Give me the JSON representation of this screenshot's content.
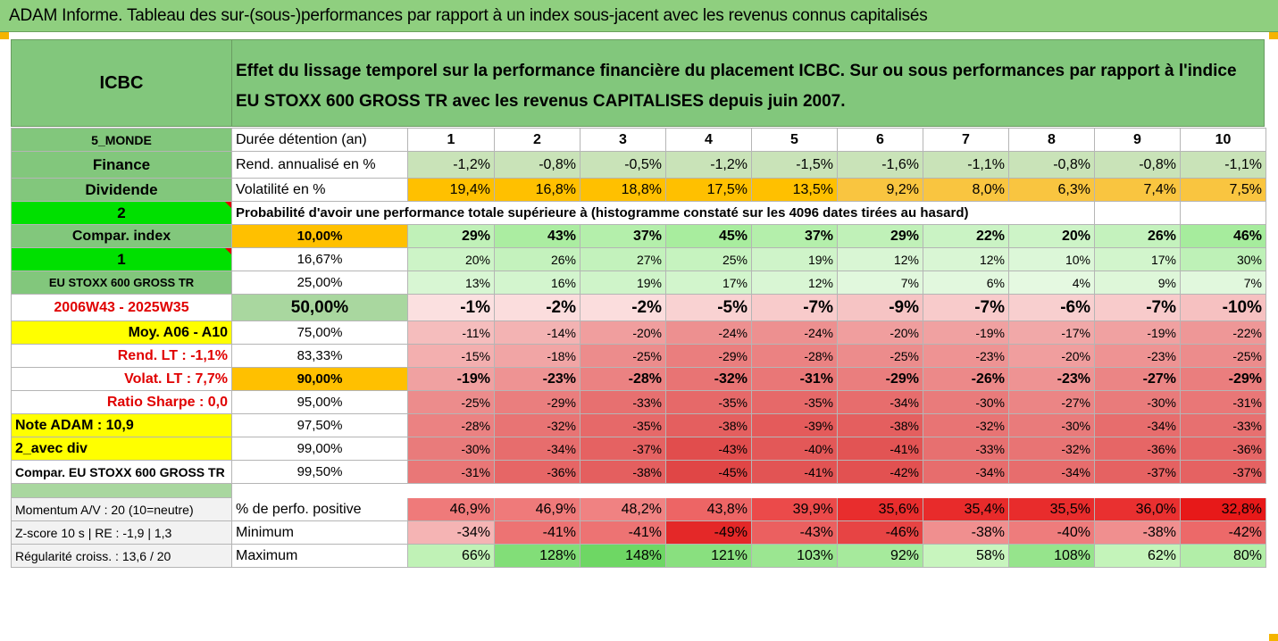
{
  "title": "ADAM Informe. Tableau des sur-(sous-)performances par rapport à un index sous-jacent avec les revenus connus capitalisés",
  "header": {
    "name": "ICBC",
    "description": "Effet du lissage temporel sur la performance financière du placement ICBC. Sur ou sous performances par rapport à l'indice EU STOXX 600 GROSS TR avec les revenus CAPITALISES depuis juin 2007."
  },
  "left_panel": {
    "zone": "5_MONDE",
    "sector": "Finance",
    "type": "Dividende",
    "sel1": "2",
    "compar_index": "Compar. index",
    "sel2": "1",
    "index_name": "EU STOXX 600 GROSS TR",
    "period": "2006W43 - 2025W35",
    "moy": "Moy. A06 - A10",
    "rend_lt": "Rend. LT :   -1,1%",
    "volat_lt": "Volat. LT :   7,7%",
    "sharpe": "Ratio Sharpe :   0,0",
    "note": "Note ADAM : 10,9",
    "div": "2_avec div",
    "compar_full": "Compar. EU STOXX 600 GROSS TR"
  },
  "durations_label": "Durée détention (an)",
  "durations": [
    "1",
    "2",
    "3",
    "4",
    "5",
    "6",
    "7",
    "8",
    "9",
    "10"
  ],
  "rend_label": "Rend. annualisé en %",
  "rend": [
    "-1,2%",
    "-0,8%",
    "-0,5%",
    "-1,2%",
    "-1,5%",
    "-1,6%",
    "-1,1%",
    "-0,8%",
    "-0,8%",
    "-1,1%"
  ],
  "vol_label": "Volatilité en %",
  "vol": [
    "19,4%",
    "16,8%",
    "18,8%",
    "17,5%",
    "13,5%",
    "9,2%",
    "8,0%",
    "6,3%",
    "7,4%",
    "7,5%"
  ],
  "prob_title": "Probabilité d'avoir une performance totale supérieure à (histogramme constaté sur les 4096 dates tirées au hasard)",
  "quantiles": [
    {
      "p": "10,00%",
      "v": [
        "29%",
        "43%",
        "37%",
        "45%",
        "37%",
        "29%",
        "22%",
        "20%",
        "26%",
        "46%"
      ]
    },
    {
      "p": "16,67%",
      "v": [
        "20%",
        "26%",
        "27%",
        "25%",
        "19%",
        "12%",
        "12%",
        "10%",
        "17%",
        "30%"
      ]
    },
    {
      "p": "25,00%",
      "v": [
        "13%",
        "16%",
        "19%",
        "17%",
        "12%",
        "7%",
        "6%",
        "4%",
        "9%",
        "7%"
      ]
    },
    {
      "p": "50,00%",
      "v": [
        "-1%",
        "-2%",
        "-2%",
        "-5%",
        "-7%",
        "-9%",
        "-7%",
        "-6%",
        "-7%",
        "-10%"
      ]
    },
    {
      "p": "75,00%",
      "v": [
        "-11%",
        "-14%",
        "-20%",
        "-24%",
        "-24%",
        "-20%",
        "-19%",
        "-17%",
        "-19%",
        "-22%"
      ]
    },
    {
      "p": "83,33%",
      "v": [
        "-15%",
        "-18%",
        "-25%",
        "-29%",
        "-28%",
        "-25%",
        "-23%",
        "-20%",
        "-23%",
        "-25%"
      ]
    },
    {
      "p": "90,00%",
      "v": [
        "-19%",
        "-23%",
        "-28%",
        "-32%",
        "-31%",
        "-29%",
        "-26%",
        "-23%",
        "-27%",
        "-29%"
      ]
    },
    {
      "p": "95,00%",
      "v": [
        "-25%",
        "-29%",
        "-33%",
        "-35%",
        "-35%",
        "-34%",
        "-30%",
        "-27%",
        "-30%",
        "-31%"
      ]
    },
    {
      "p": "97,50%",
      "v": [
        "-28%",
        "-32%",
        "-35%",
        "-38%",
        "-39%",
        "-38%",
        "-32%",
        "-30%",
        "-34%",
        "-33%"
      ]
    },
    {
      "p": "99,00%",
      "v": [
        "-30%",
        "-34%",
        "-37%",
        "-43%",
        "-40%",
        "-41%",
        "-33%",
        "-32%",
        "-36%",
        "-36%"
      ]
    },
    {
      "p": "99,50%",
      "v": [
        "-31%",
        "-36%",
        "-38%",
        "-45%",
        "-41%",
        "-42%",
        "-34%",
        "-34%",
        "-37%",
        "-37%"
      ]
    }
  ],
  "bottom": [
    {
      "left": "Momentum A/V : 20 (10=neutre)",
      "label": "% de perfo. positive",
      "v": [
        "46,9%",
        "46,9%",
        "48,2%",
        "43,8%",
        "39,9%",
        "35,6%",
        "35,4%",
        "35,5%",
        "36,0%",
        "32,8%"
      ]
    },
    {
      "left": "Z-score 10 s  |  RE : -1,9  |  1,3",
      "label": "Minimum",
      "v": [
        "-34%",
        "-41%",
        "-41%",
        "-49%",
        "-43%",
        "-46%",
        "-38%",
        "-40%",
        "-38%",
        "-42%"
      ]
    },
    {
      "left": "Régularité croiss. : 13,6 / 20",
      "label": "Maximum",
      "v": [
        "66%",
        "128%",
        "148%",
        "121%",
        "103%",
        "92%",
        "58%",
        "108%",
        "62%",
        "80%"
      ]
    }
  ],
  "colors": {
    "title_bar": "#8fcf7f",
    "header_green": "#82c77c",
    "rend_green": "#c9e3b8",
    "vol_orange": "#ffc000",
    "bright_green": "#00e000",
    "yellow": "#ffff00"
  }
}
